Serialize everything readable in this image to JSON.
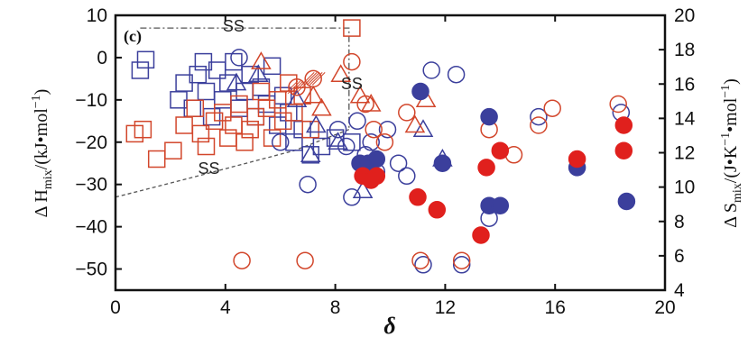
{
  "chart_data": {
    "type": "scatter",
    "panel_label": "(c)",
    "xlabel": "δ",
    "ylabel_left": {
      "prefix": "Δ H",
      "sub": "mix",
      "suffix": "/(kJ•mol",
      "sup": "−1",
      "end": ")"
    },
    "ylabel_right": {
      "prefix": "Δ S",
      "sub": "mix",
      "suffix": "/(J•K",
      "sup1": "−1",
      "mid": "•mol",
      "sup2": "−1",
      "end": ")"
    },
    "xlim": [
      0,
      20
    ],
    "ylim_left": [
      -55,
      10
    ],
    "ylim_right": [
      4,
      20
    ],
    "xticks": [
      0,
      4,
      8,
      12,
      16,
      20
    ],
    "xtick_labels": [
      "0",
      "4",
      "8",
      "12",
      "16",
      "20"
    ],
    "yticks_left": [
      10,
      0,
      -10,
      -20,
      -30,
      -40,
      -50
    ],
    "ytick_labels_left": [
      "10",
      "0",
      "−10",
      "−20",
      "−30",
      "−40",
      "−50"
    ],
    "yticks_right": [
      20,
      18,
      16,
      14,
      12,
      10,
      8,
      6,
      4
    ],
    "ytick_labels_right": [
      "20",
      "18",
      "16",
      "14",
      "12",
      "10",
      "8",
      "6",
      "4"
    ],
    "annotations": [
      {
        "text": "SS",
        "x": 4.3,
        "y": 6.2
      },
      {
        "text": "SS",
        "x": 8.6,
        "y": -7.5
      },
      {
        "text": "SS",
        "x": 3.4,
        "y": -27.5
      }
    ],
    "series": [
      {
        "marker": "square",
        "color": "#3b3f9c",
        "filled": false,
        "points": [
          [
            0.9,
            -3
          ],
          [
            1.1,
            -0.5
          ],
          [
            2.3,
            -10
          ],
          [
            2.5,
            -6
          ],
          [
            2.8,
            -12
          ],
          [
            3,
            -4
          ],
          [
            3.2,
            -1
          ],
          [
            3.3,
            -8
          ],
          [
            3.5,
            -14
          ],
          [
            3.7,
            -3
          ],
          [
            3.9,
            -10
          ],
          [
            4.1,
            -6
          ],
          [
            4.3,
            -1
          ],
          [
            4.5,
            -12
          ],
          [
            4.7,
            -8
          ],
          [
            4.9,
            -4
          ],
          [
            5.1,
            -14
          ],
          [
            5.3,
            -7
          ],
          [
            5.5,
            -11
          ],
          [
            5.7,
            -2
          ],
          [
            5.9,
            -16
          ],
          [
            6.1,
            -9
          ],
          [
            6.3,
            -13
          ],
          [
            6.5,
            -20
          ],
          [
            6.8,
            -17
          ],
          [
            7.1,
            -23
          ],
          [
            7.5,
            -21
          ],
          [
            8,
            -19
          ],
          [
            8.6,
            -20
          ]
        ]
      },
      {
        "marker": "square",
        "color": "#d2462b",
        "filled": false,
        "points": [
          [
            0.7,
            -18
          ],
          [
            1,
            -17
          ],
          [
            1.5,
            -24
          ],
          [
            2.1,
            -22
          ],
          [
            2.5,
            -16
          ],
          [
            2.9,
            -12
          ],
          [
            3.1,
            -18
          ],
          [
            3.3,
            -21
          ],
          [
            3.6,
            -15
          ],
          [
            3.9,
            -13
          ],
          [
            4.1,
            -19
          ],
          [
            4.3,
            -16
          ],
          [
            4.5,
            -11
          ],
          [
            4.7,
            -20
          ],
          [
            4.9,
            -17
          ],
          [
            5.1,
            -14
          ],
          [
            5.3,
            -8
          ],
          [
            5.5,
            -12
          ],
          [
            5.7,
            -19
          ],
          [
            5.9,
            -10
          ],
          [
            6.1,
            -15
          ],
          [
            6.3,
            -6
          ],
          [
            6.5,
            -13
          ],
          [
            6.8,
            -9
          ],
          [
            7.1,
            -17
          ],
          [
            8.6,
            7
          ]
        ]
      },
      {
        "marker": "triangle",
        "color": "#3b3f9c",
        "filled": false,
        "points": [
          [
            4.4,
            -6
          ],
          [
            5.2,
            -4
          ],
          [
            6.6,
            -10
          ],
          [
            7.1,
            -23
          ],
          [
            7.3,
            -16
          ],
          [
            8.1,
            -20
          ],
          [
            9,
            -31.5
          ],
          [
            11.2,
            -17
          ],
          [
            11.9,
            -24
          ]
        ]
      },
      {
        "marker": "triangle",
        "color": "#d2462b",
        "filled": false,
        "points": [
          [
            5.3,
            -1
          ],
          [
            7.2,
            -9
          ],
          [
            7.5,
            -12
          ],
          [
            8.2,
            -4
          ],
          [
            8.9,
            -9
          ],
          [
            9.3,
            -11
          ],
          [
            10.9,
            -16
          ],
          [
            11.3,
            -10
          ]
        ]
      },
      {
        "marker": "hatch",
        "color": "#d2462b",
        "filled": false,
        "points": [
          [
            6.6,
            -7
          ],
          [
            7.2,
            -5
          ]
        ]
      },
      {
        "marker": "circle",
        "color": "#3b3f9c",
        "filled": false,
        "points": [
          [
            4.5,
            0
          ],
          [
            6,
            -20
          ],
          [
            7,
            -30
          ],
          [
            8.1,
            -17
          ],
          [
            8.4,
            -21
          ],
          [
            8.6,
            -33
          ],
          [
            8.8,
            -15
          ],
          [
            9.1,
            -23
          ],
          [
            9.3,
            -20
          ],
          [
            9.5,
            -27
          ],
          [
            9.9,
            -17
          ],
          [
            10.3,
            -25
          ],
          [
            10.6,
            -28
          ],
          [
            11.2,
            -49
          ],
          [
            11.5,
            -3
          ],
          [
            12.4,
            -4
          ],
          [
            12.6,
            -49
          ],
          [
            13.6,
            -38
          ],
          [
            15.4,
            -14
          ],
          [
            18.4,
            -13
          ]
        ]
      },
      {
        "marker": "circle",
        "color": "#d2462b",
        "filled": false,
        "points": [
          [
            4.6,
            -48
          ],
          [
            6.9,
            -48
          ],
          [
            8.6,
            -1
          ],
          [
            9.1,
            -11
          ],
          [
            9.4,
            -17
          ],
          [
            9.8,
            -20
          ],
          [
            10.6,
            -13
          ],
          [
            11.1,
            -48
          ],
          [
            12.6,
            -48
          ],
          [
            13.6,
            -17
          ],
          [
            14.5,
            -23
          ],
          [
            15.4,
            -16
          ],
          [
            15.9,
            -12
          ],
          [
            18.3,
            -11
          ]
        ]
      },
      {
        "marker": "circle",
        "color": "#3b3f9c",
        "filled": true,
        "points": [
          [
            8.9,
            -25
          ],
          [
            9.2,
            -25
          ],
          [
            9.5,
            -24
          ],
          [
            11.1,
            -8
          ],
          [
            11.9,
            -25
          ],
          [
            13.6,
            -14
          ],
          [
            13.6,
            -35
          ],
          [
            14,
            -35
          ],
          [
            16.8,
            -26
          ],
          [
            18.6,
            -34
          ]
        ]
      },
      {
        "marker": "circle",
        "color": "#e0201d",
        "filled": true,
        "points": [
          [
            9,
            -28
          ],
          [
            9.5,
            -28
          ],
          [
            9.3,
            -29
          ],
          [
            11,
            -33
          ],
          [
            11.7,
            -36
          ],
          [
            13.3,
            -42
          ],
          [
            13.5,
            -26
          ],
          [
            14,
            -22
          ],
          [
            16.8,
            -24
          ],
          [
            18.5,
            -16
          ],
          [
            18.5,
            -22
          ]
        ]
      }
    ],
    "boundary_lines": {
      "color": "#555555",
      "dashdot_top": [
        [
          0.9,
          7
        ],
        [
          8.5,
          7
        ],
        [
          8.5,
          -17
        ]
      ],
      "dashed_bottom": [
        [
          0,
          -33
        ],
        [
          3,
          -28
        ],
        [
          6.5,
          -22
        ],
        [
          8.5,
          -17
        ]
      ]
    }
  }
}
